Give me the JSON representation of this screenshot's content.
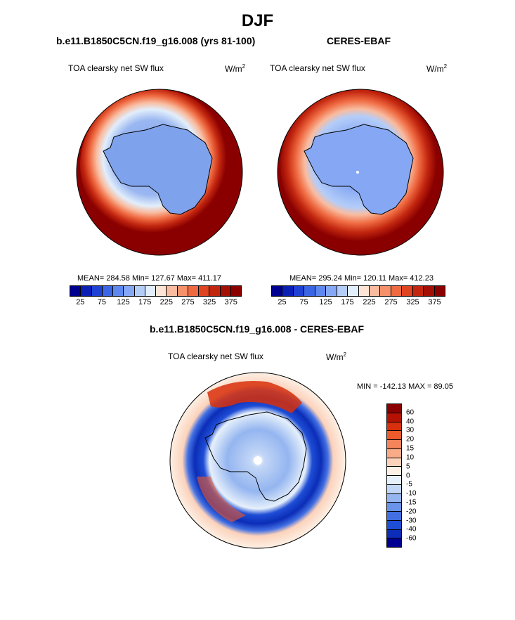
{
  "title": "DJF",
  "colors": {
    "abs_scale": [
      "#00008f",
      "#0a1fb4",
      "#1f42d4",
      "#3a66e6",
      "#5f88ef",
      "#86a8f4",
      "#b4cdf8",
      "#e2eefb",
      "#fde4d4",
      "#f9bca0",
      "#f5916b",
      "#ef6a41",
      "#e04320",
      "#c2260f",
      "#a30f04",
      "#8a0000"
    ],
    "diff_scale": [
      "#8a0000",
      "#b51203",
      "#d8300c",
      "#ed5a2c",
      "#f5835b",
      "#f9ab88",
      "#fcd2bb",
      "#fdf0e5",
      "#e6f0fb",
      "#c2d6f6",
      "#94b5f0",
      "#6a93ea",
      "#4270e3",
      "#1f4ed6",
      "#0b2db7",
      "#000090"
    ],
    "ocean_model": "#8a0000",
    "continent": "#7fa2ec"
  },
  "panel_left": {
    "title": "b.e11.B1850C5CN.f19_g16.008 (yrs 81-100)",
    "variable": "TOA clearsky net SW flux",
    "units_base": "W/m",
    "units_exp": "2",
    "stats": "MEAN= 284.58  Min= 127.67  Max= 411.17"
  },
  "panel_right": {
    "title": "CERES-EBAF",
    "variable": "TOA clearsky net SW flux",
    "units_base": "W/m",
    "units_exp": "2",
    "stats": "MEAN= 295.24  Min= 120.11  Max= 412.23"
  },
  "panel_diff": {
    "title": "b.e11.B1850C5CN.f19_g16.008 - CERES-EBAF",
    "variable": "TOA clearsky net SW flux",
    "units_base": "W/m",
    "units_exp": "2",
    "stats": "MIN = -142.13 MAX =  89.05"
  },
  "abs_ticks": [
    "25",
    "75",
    "125",
    "175",
    "225",
    "275",
    "325",
    "375"
  ],
  "diff_ticks": [
    "60",
    "40",
    "30",
    "20",
    "15",
    "10",
    "5",
    "0",
    "-5",
    "-10",
    "-15",
    "-20",
    "-30",
    "-40",
    "-60"
  ]
}
